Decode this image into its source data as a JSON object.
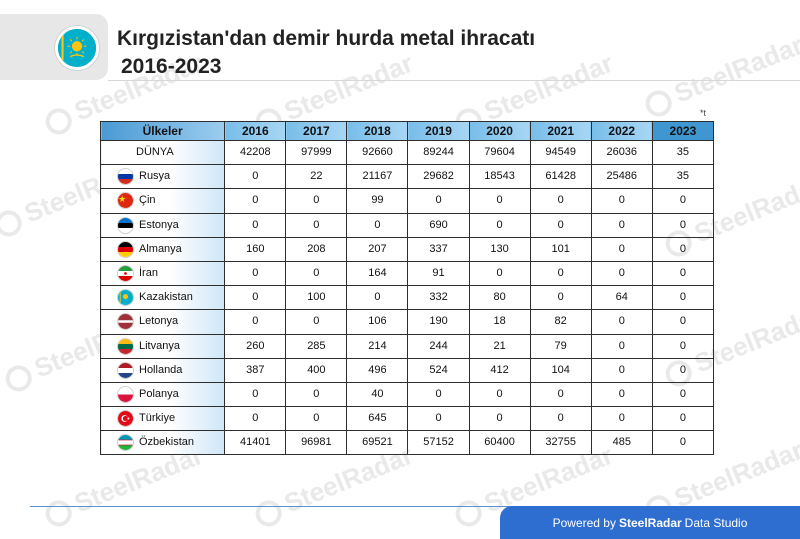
{
  "header": {
    "title": "Kırgızistan'dan demir hurda metal ihracatı",
    "subtitle": "2016-2023",
    "unit_note": "*t",
    "flag_icon": "kazakhstan-flag-icon"
  },
  "watermark": {
    "text": "SteelRadar"
  },
  "footer": {
    "prefix": "Powered by",
    "brand": "SteelRadar",
    "suffix": "Data Studio"
  },
  "colors": {
    "header_blue": "#6fb6e6",
    "footer_blue": "#2f6ed1",
    "border": "#2e2e2e"
  },
  "chart_data": {
    "type": "table",
    "title": "Kırgızistan'dan demir hurda metal ihracatı 2016-2023",
    "unit": "*t",
    "columns": [
      "Ülkeler",
      "2016",
      "2017",
      "2018",
      "2019",
      "2020",
      "2021",
      "2022",
      "2023"
    ],
    "rows": [
      {
        "country": "DÜNYA",
        "flag": "",
        "values": [
          "42208",
          "97999",
          "92660",
          "89244",
          "79604",
          "94549",
          "26036",
          "35"
        ]
      },
      {
        "country": "Rusya",
        "flag": "russia-flag-icon",
        "values": [
          "0",
          "22",
          "21167",
          "29682",
          "18543",
          "61428",
          "25486",
          "35"
        ]
      },
      {
        "country": "Çin",
        "flag": "china-flag-icon",
        "values": [
          "0",
          "0",
          "99",
          "0",
          "0",
          "0",
          "0",
          "0"
        ]
      },
      {
        "country": "Estonya",
        "flag": "estonia-flag-icon",
        "values": [
          "0",
          "0",
          "0",
          "690",
          "0",
          "0",
          "0",
          "0"
        ]
      },
      {
        "country": "Almanya",
        "flag": "germany-flag-icon",
        "values": [
          "160",
          "208",
          "207",
          "337",
          "130",
          "101",
          "0",
          "0"
        ]
      },
      {
        "country": "İran",
        "flag": "iran-flag-icon",
        "values": [
          "0",
          "0",
          "164",
          "91",
          "0",
          "0",
          "0",
          "0"
        ]
      },
      {
        "country": "Kazakistan",
        "flag": "kazakhstan-flag-icon",
        "values": [
          "0",
          "100",
          "0",
          "332",
          "80",
          "0",
          "64",
          "0"
        ]
      },
      {
        "country": "Letonya",
        "flag": "latvia-flag-icon",
        "values": [
          "0",
          "0",
          "106",
          "190",
          "18",
          "82",
          "0",
          "0"
        ]
      },
      {
        "country": "Litvanya",
        "flag": "lithuania-flag-icon",
        "values": [
          "260",
          "285",
          "214",
          "244",
          "21",
          "79",
          "0",
          "0"
        ]
      },
      {
        "country": "Hollanda",
        "flag": "netherlands-flag-icon",
        "values": [
          "387",
          "400",
          "496",
          "524",
          "412",
          "104",
          "0",
          "0"
        ]
      },
      {
        "country": "Polanya",
        "flag": "poland-flag-icon",
        "values": [
          "0",
          "0",
          "40",
          "0",
          "0",
          "0",
          "0",
          "0"
        ]
      },
      {
        "country": "Türkiye",
        "flag": "turkey-flag-icon",
        "values": [
          "0",
          "0",
          "645",
          "0",
          "0",
          "0",
          "0",
          "0"
        ]
      },
      {
        "country": "Özbekistan",
        "flag": "uzbekistan-flag-icon",
        "values": [
          "41401",
          "96981",
          "69521",
          "57152",
          "60400",
          "32755",
          "485",
          "0"
        ]
      }
    ]
  }
}
